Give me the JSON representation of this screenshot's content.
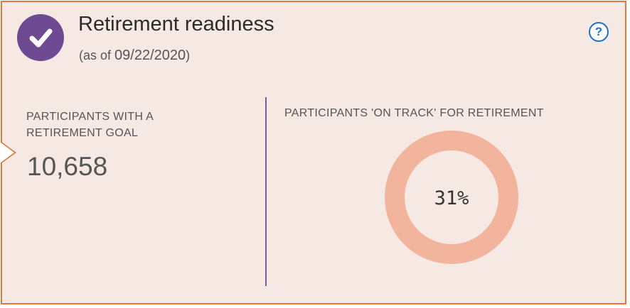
{
  "header": {
    "title": "Retirement readiness",
    "as_of_prefix": "(as of ",
    "as_of_date": "09/22/2020",
    "as_of_suffix": ")",
    "status_icon": "check-icon",
    "help_label": "?"
  },
  "goal_stat": {
    "label": "PARTICIPANTS WITH A RETIREMENT GOAL",
    "value": "10,658"
  },
  "on_track": {
    "label": "PARTICIPANTS 'ON TRACK' FOR RETIREMENT",
    "percent_label": "31%",
    "percent": 31
  },
  "colors": {
    "accent_purple": "#6e4a92",
    "track_peach": "#f2b49c",
    "border_orange": "#e07a3e",
    "card_bg": "#f6e9e3",
    "help_blue": "#1a73c6"
  }
}
